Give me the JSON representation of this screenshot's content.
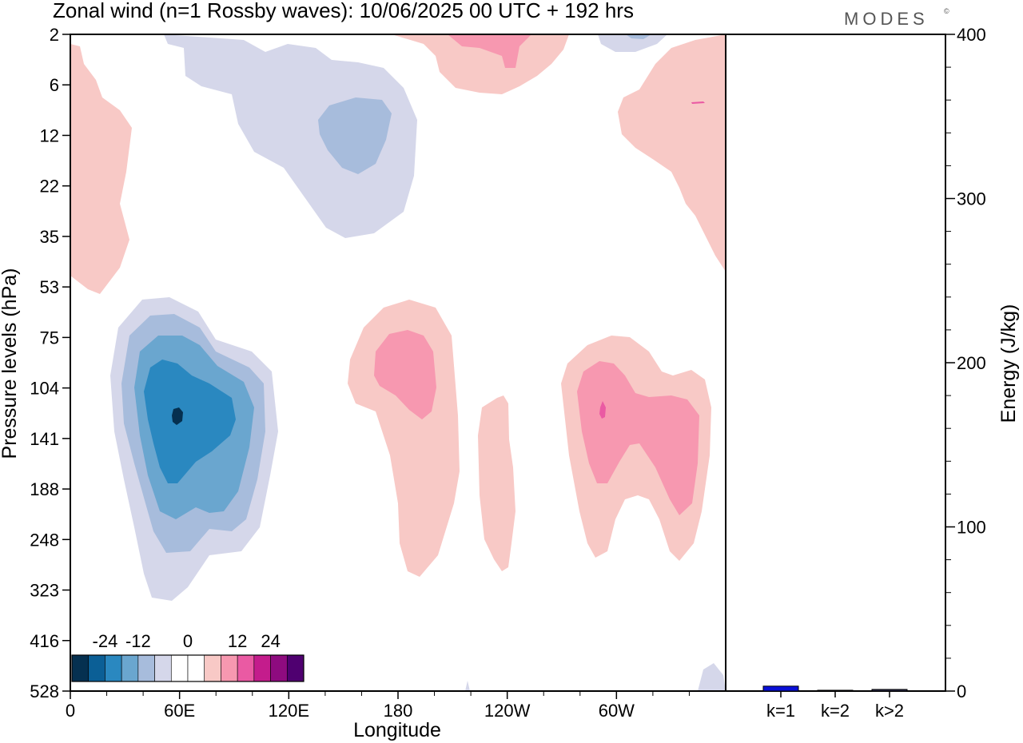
{
  "title": "Zonal wind (n=1 Rossby waves):  10/06/2025  00 UTC  + 192 hrs",
  "logo": "MODES",
  "logo_mark": "©",
  "chart_data": [
    {
      "type": "contour",
      "xlabel": "Longitude",
      "ylabel": "Pressure levels (hPa)",
      "x_ticks": [
        "0",
        "60E",
        "120E",
        "180",
        "120W",
        "60W"
      ],
      "y_ticks": [
        "2",
        "6",
        "12",
        "22",
        "35",
        "53",
        "75",
        "104",
        "141",
        "188",
        "248",
        "323",
        "416",
        "528"
      ],
      "colorbar": {
        "labels": [
          "-24",
          "-12",
          "0",
          "12",
          "24"
        ],
        "colors": [
          "#053050",
          "#0b5f96",
          "#2a88c0",
          "#6aa6cf",
          "#a7bcdc",
          "#d5d7ea",
          "#ffffff",
          "#ffffff",
          "#f8c9c6",
          "#f798b0",
          "#ea5aa3",
          "#c41c8c",
          "#8e0b7f",
          "#4f0070"
        ]
      },
      "features": [
        {
          "sign": "negative",
          "location": "60E, 104-141 hPa",
          "peak": -26
        },
        {
          "sign": "negative",
          "location": "150E, 12 hPa",
          "peak": -8
        },
        {
          "sign": "positive",
          "location": "180, 104 hPa",
          "peak": 10
        },
        {
          "sign": "positive",
          "location": "120W, 141-248 hPa",
          "peak": 6
        },
        {
          "sign": "positive",
          "location": "60W, 104-188 hPa",
          "peak": 12
        }
      ]
    },
    {
      "type": "bar",
      "ylabel": "Energy (J/kg)",
      "ylim": [
        0,
        400
      ],
      "y_ticks": [
        "0",
        "100",
        "200",
        "300",
        "400"
      ],
      "categories": [
        "k=1",
        "k=2",
        "k>2"
      ],
      "values": [
        3,
        0.5,
        1
      ],
      "colors": [
        "#0a10d8",
        "#303050",
        "#303050"
      ]
    }
  ]
}
